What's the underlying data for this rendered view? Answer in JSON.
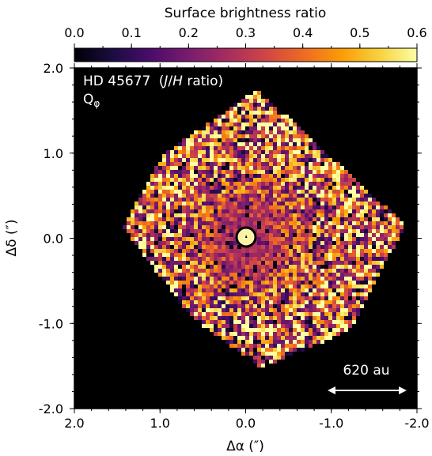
{
  "colorbar": {
    "label": "Surface brightness ratio",
    "range": [
      0.0,
      0.6
    ],
    "ticks": [
      "0.0",
      "0.1",
      "0.2",
      "0.3",
      "0.4",
      "0.5",
      "0.6"
    ],
    "colormap": [
      "#000004",
      "#1b0c41",
      "#4a0c6b",
      "#781c6d",
      "#a52c60",
      "#cf4446",
      "#ed6925",
      "#fb9b06",
      "#f7d13d",
      "#fcffa4"
    ]
  },
  "image": {
    "target": "HD 45677",
    "ratio_prefix": "(",
    "ratio_j": "J",
    "ratio_slash": "/",
    "ratio_h": "H",
    "ratio_suffix": " ratio)",
    "stokes_main": "Q",
    "stokes_sub": "φ",
    "background_color": "#000000",
    "mask_color": "#fcf3a8"
  },
  "axes": {
    "x_label": "Δα (″)",
    "y_label": "Δδ (″)",
    "x_ticks": [
      "2.0",
      "1.0",
      "0.0",
      "-1.0",
      "-2.0"
    ],
    "y_ticks": [
      "2.0",
      "1.0",
      "0.0",
      "-1.0",
      "-2.0"
    ],
    "x_range": [
      2.0,
      -2.0
    ],
    "y_range": [
      -2.0,
      2.0
    ]
  },
  "scale_bar": {
    "label": "620 au",
    "length_arcsec": 1.0
  }
}
